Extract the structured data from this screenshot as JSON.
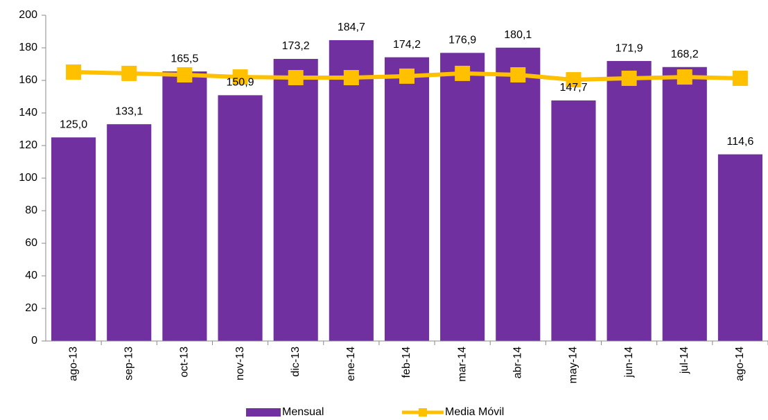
{
  "chart_data": {
    "type": "combo",
    "categories": [
      "ago-13",
      "sep-13",
      "oct-13",
      "nov-13",
      "dic-13",
      "ene-14",
      "feb-14",
      "mar-14",
      "abr-14",
      "may-14",
      "jun-14",
      "jul-14",
      "ago-14"
    ],
    "series": [
      {
        "name": "Mensual",
        "type": "bar",
        "color": "#7030a0",
        "values": [
          125.0,
          133.1,
          165.5,
          150.9,
          173.2,
          184.7,
          174.2,
          176.9,
          180.1,
          147.7,
          171.9,
          168.2,
          114.6
        ],
        "value_labels": [
          "125,0",
          "133,1",
          "165,5",
          "150,9",
          "173,2",
          "184,7",
          "174,2",
          "176,9",
          "180,1",
          "147,7",
          "171,9",
          "168,2",
          "114,6"
        ]
      },
      {
        "name": "Media Móvil",
        "type": "line",
        "color": "#ffc000",
        "values": [
          165.1,
          164.3,
          163.4,
          162.1,
          161.7,
          161.7,
          162.6,
          164.3,
          163.4,
          160.4,
          161.3,
          162.1,
          161.3
        ]
      }
    ],
    "ylim": [
      0,
      200
    ],
    "yticks": [
      0,
      20,
      40,
      60,
      80,
      100,
      120,
      140,
      160,
      180,
      200
    ],
    "grid": false,
    "legend": "bottom"
  }
}
